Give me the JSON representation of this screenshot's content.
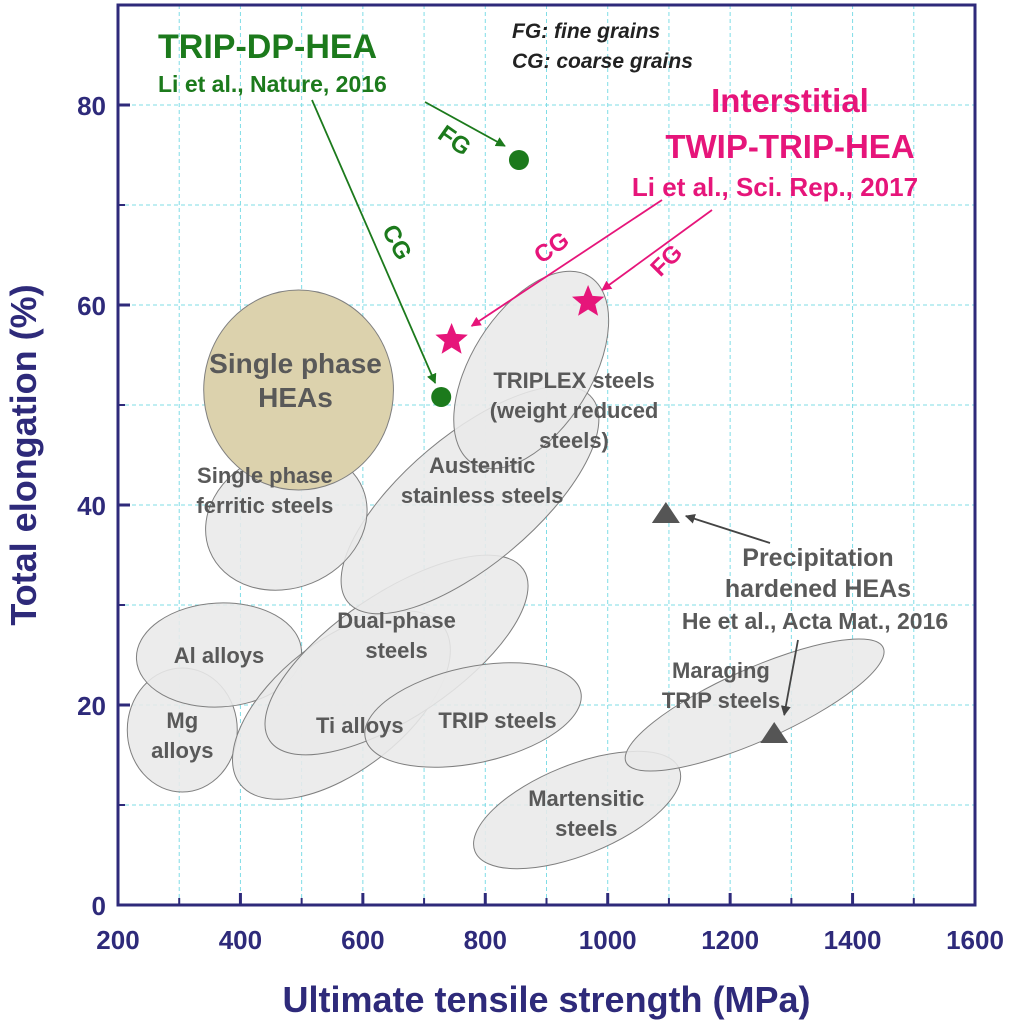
{
  "chart_data": {
    "type": "scatter",
    "title": "",
    "xlabel": "Ultimate tensile strength (MPa)",
    "ylabel": "Total elongation (%)",
    "xlim": [
      200,
      1600
    ],
    "ylim": [
      0,
      90
    ],
    "x_ticks": [
      200,
      400,
      600,
      800,
      1000,
      1200,
      1400,
      1600
    ],
    "y_ticks": [
      0,
      20,
      40,
      60,
      80
    ],
    "grid": true,
    "colors": {
      "axis": "#2e2a7a",
      "grid": "#7fdde6",
      "green": "#1c7a1c",
      "magenta": "#e6157a",
      "gray": "#595959",
      "region_fill": "#e9e9e9",
      "region_stroke": "#7f7f7f",
      "hea_fill": "#dcd2ad"
    },
    "legend_notes": [
      "FG: fine grains",
      "CG: coarse grains"
    ],
    "regions": [
      {
        "id": "mg-alloys",
        "lines": [
          "Mg",
          "alloys"
        ],
        "cx": 305,
        "cy": 17.5,
        "rx": 90,
        "ry": 6.5,
        "angle": -90,
        "label_pos": [
          305,
          17
        ]
      },
      {
        "id": "al-alloys",
        "lines": [
          "Al alloys"
        ],
        "cx": 365,
        "cy": 25,
        "rx": 135,
        "ry": 5.2,
        "angle": -3,
        "label_pos": [
          365,
          25
        ]
      },
      {
        "id": "ti-alloys",
        "lines": [
          "Ti alloys"
        ],
        "cx": 565,
        "cy": 20,
        "rx": 210,
        "ry": 6.5,
        "angle": -38,
        "label_pos": [
          595,
          18
        ]
      },
      {
        "id": "dual-phase-steels",
        "lines": [
          "Dual-phase",
          "steels"
        ],
        "cx": 655,
        "cy": 25,
        "rx": 250,
        "ry": 6.2,
        "angle": -34,
        "label_pos": [
          655,
          27
        ]
      },
      {
        "id": "trip-steels",
        "lines": [
          "TRIP steels"
        ],
        "cx": 780,
        "cy": 19,
        "rx": 180,
        "ry": 4.8,
        "angle": -12,
        "label_pos": [
          820,
          18.5
        ]
      },
      {
        "id": "martensitic-steels",
        "lines": [
          "Martensitic",
          "steels"
        ],
        "cx": 950,
        "cy": 9.5,
        "rx": 180,
        "ry": 4.5,
        "angle": -22,
        "label_pos": [
          965,
          9.2
        ]
      },
      {
        "id": "maraging-trip-steels",
        "lines": [
          "Maraging",
          "TRIP steels"
        ],
        "cx": 1240,
        "cy": 20,
        "rx": 230,
        "ry": 3.6,
        "angle": -24,
        "label_pos": [
          1185,
          22
        ]
      },
      {
        "id": "austenitic-stainless-steels",
        "lines": [
          "Austenitic",
          "stainless steels"
        ],
        "cx": 775,
        "cy": 40.5,
        "rx": 260,
        "ry": 6.5,
        "angle": -40,
        "label_pos": [
          795,
          42.5
        ]
      },
      {
        "id": "single-phase-ferritic-steels",
        "lines": [
          "Single phase",
          "ferritic steels"
        ],
        "cx": 475,
        "cy": 38.5,
        "rx": 135,
        "ry": 6.8,
        "angle": -22,
        "label_pos": [
          440,
          41.5
        ]
      },
      {
        "id": "triplex-steels",
        "lines": [
          "TRIPLEX steels",
          "(weight reduced",
          "steels)"
        ],
        "cx": 875,
        "cy": 53.5,
        "rx": 180,
        "ry": 6.0,
        "angle": -58,
        "label_pos": [
          945,
          49.5
        ]
      },
      {
        "id": "single-phase-heas",
        "lines": [
          "Single phase",
          "HEAs"
        ],
        "cx": 495,
        "cy": 51.5,
        "rx": 155,
        "ry": 10.0,
        "angle": 0,
        "label_pos": [
          490,
          52.5
        ],
        "highlight": true
      }
    ],
    "series": [
      {
        "name": "TRIP-DP-HEA",
        "marker": "circle",
        "color": "green",
        "points": [
          {
            "x": 855,
            "y": 74.5,
            "label": "FG"
          },
          {
            "x": 728,
            "y": 50.8,
            "label": "CG"
          }
        ]
      },
      {
        "name": "Interstitial TWIP-TRIP-HEA",
        "marker": "star",
        "color": "magenta",
        "points": [
          {
            "x": 745,
            "y": 56.5,
            "label": "CG"
          },
          {
            "x": 968,
            "y": 60.3,
            "label": "FG"
          }
        ]
      },
      {
        "name": "Precipitation hardened HEAs",
        "marker": "triangle",
        "color": "gray",
        "points": [
          {
            "x": 1095,
            "y": 39.2
          },
          {
            "x": 1272,
            "y": 17.2
          }
        ]
      }
    ],
    "annotations": [
      {
        "id": "trip-dp-hea-title",
        "text": "TRIP-DP-HEA",
        "color": "green"
      },
      {
        "id": "trip-dp-hea-ref",
        "text": "Li et al., Nature, 2016",
        "color": "green"
      },
      {
        "id": "fg-green",
        "text": "FG",
        "color": "green"
      },
      {
        "id": "cg-green",
        "text": "CG",
        "color": "green"
      },
      {
        "id": "interstitial-title-1",
        "text": "Interstitial",
        "color": "magenta"
      },
      {
        "id": "interstitial-title-2",
        "text": "TWIP-TRIP-HEA",
        "color": "magenta"
      },
      {
        "id": "interstitial-ref",
        "text": "Li et al., Sci. Rep., 2017",
        "color": "magenta"
      },
      {
        "id": "cg-magenta",
        "text": "CG",
        "color": "magenta"
      },
      {
        "id": "fg-magenta",
        "text": "FG",
        "color": "magenta"
      },
      {
        "id": "precip-1",
        "text": "Precipitation",
        "color": "gray"
      },
      {
        "id": "precip-2",
        "text": "hardened HEAs",
        "color": "gray"
      },
      {
        "id": "precip-ref",
        "text": "He et al., Acta Mat., 2016",
        "color": "gray"
      }
    ]
  }
}
